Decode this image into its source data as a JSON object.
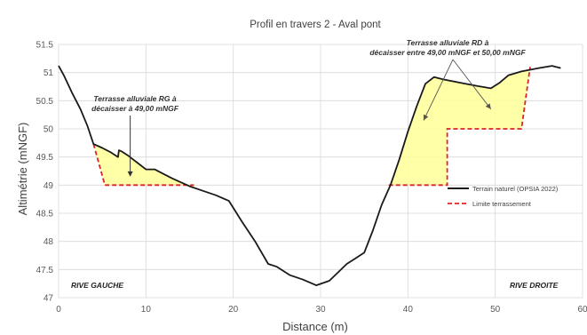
{
  "chart_data": {
    "type": "line",
    "title": "Profil en travers 2 - Aval pont",
    "xlabel": "Distance (m)",
    "ylabel": "Altimétrie (mNGF)",
    "xlim": [
      0,
      60
    ],
    "ylim": [
      47,
      51.5
    ],
    "x_ticks": [
      "0",
      "10",
      "20",
      "30",
      "40",
      "50",
      "60"
    ],
    "y_ticks": [
      "47",
      "47.5",
      "48",
      "48.5",
      "49",
      "49.5",
      "50",
      "50.5",
      "51",
      "51.5"
    ],
    "grid": true,
    "legend_position": "right",
    "series": [
      {
        "name": "Terrain naturel (OPSIA 2022)",
        "color": "#1a1a1a",
        "style": "solid",
        "x": [
          0,
          0.6,
          1.5,
          2.5,
          3.3,
          4.0,
          5.0,
          6.0,
          6.8,
          6.9,
          7.2,
          8.0,
          9.0,
          10.0,
          11.0,
          12.0,
          13.0,
          14.0,
          15.0,
          16.5,
          18.0,
          19.5,
          21.0,
          22.5,
          24.0,
          25.0,
          26.5,
          28.0,
          29.5,
          31.0,
          32.0,
          33.0,
          34.0,
          35.0,
          36.0,
          37.0,
          38.0,
          39.0,
          40.0,
          41.0,
          42.0,
          43.0,
          44.0,
          46.0,
          48.0,
          49.5,
          50.5,
          51.5,
          53.0,
          55.0,
          56.5,
          57.5
        ],
        "y": [
          51.12,
          50.95,
          50.65,
          50.35,
          50.05,
          49.73,
          49.66,
          49.58,
          49.5,
          49.62,
          49.6,
          49.52,
          49.4,
          49.28,
          49.28,
          49.2,
          49.12,
          49.05,
          48.98,
          48.9,
          48.82,
          48.72,
          48.35,
          48.0,
          47.6,
          47.55,
          47.4,
          47.32,
          47.22,
          47.3,
          47.45,
          47.6,
          47.7,
          47.8,
          48.2,
          48.65,
          49.0,
          49.45,
          49.95,
          50.4,
          50.8,
          50.92,
          50.88,
          50.82,
          50.76,
          50.72,
          50.82,
          50.95,
          51.02,
          51.08,
          51.12,
          51.08
        ]
      },
      {
        "name": "Limite terrassement",
        "color": "#d62828",
        "style": "dashed",
        "segments": [
          {
            "x": [
              4.0,
              5.3,
              15.5
            ],
            "y": [
              49.73,
              49.0,
              49.0
            ]
          },
          {
            "x": [
              37.8,
              44.0,
              44.5,
              44.5,
              53.0,
              54.0
            ],
            "y": [
              49.0,
              49.0,
              49.0,
              50.0,
              50.0,
              51.1
            ]
          }
        ]
      }
    ],
    "fill_areas": [
      {
        "color": "#ffff99",
        "description_left": "RG",
        "x_range": [
          4.0,
          15.5
        ],
        "lower": {
          "x": [
            4.0,
            5.3,
            15.5
          ],
          "y": [
            49.73,
            49.0,
            49.0
          ]
        }
      },
      {
        "color": "#ffff99",
        "description_right": "RD",
        "x_range": [
          37.8,
          54.0
        ],
        "lower": {
          "x": [
            37.8,
            44.5,
            44.5,
            53.0,
            54.0
          ],
          "y": [
            49.0,
            49.0,
            50.0,
            50.0,
            51.1
          ]
        }
      }
    ],
    "annotations": [
      {
        "lines": [
          "Terrasse alluviale RG à",
          "décaisser à 49,00 mNGF"
        ],
        "arrow_to": {
          "x": 8.2,
          "y": 49.15
        }
      },
      {
        "lines": [
          "Terrasse alluviale RD à",
          "décaisser entre 49,00 mNGF et 50,00 mNGF"
        ],
        "arrow_to": [
          {
            "x": 41.8,
            "y": 50.15
          },
          {
            "x": 49.5,
            "y": 50.35
          }
        ]
      }
    ],
    "bank_labels": {
      "left": "RIVE GAUCHE",
      "right": "RIVE DROITE"
    }
  }
}
